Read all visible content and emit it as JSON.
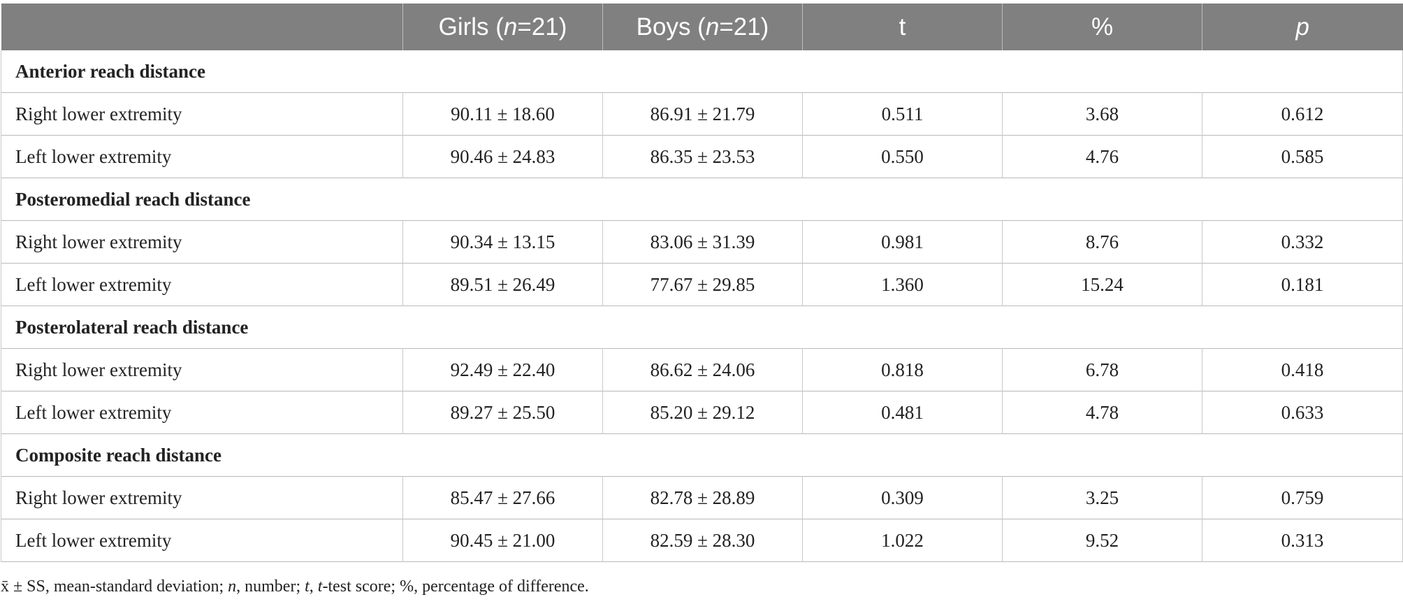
{
  "header": {
    "col0": "",
    "girls_prefix": "Girls (",
    "girls_n": "n",
    "girls_suffix": "=21)",
    "boys_prefix": "Boys (",
    "boys_n": "n",
    "boys_suffix": "=21)",
    "t": "t",
    "percent": "%",
    "p": "p"
  },
  "sections": [
    {
      "title": "Anterior reach distance",
      "rows": [
        {
          "label": "Right lower extremity",
          "girls": "90.11 ± 18.60",
          "boys": "86.91 ± 21.79",
          "t": "0.511",
          "percent": "3.68",
          "p": "0.612"
        },
        {
          "label": "Left lower extremity",
          "girls": "90.46 ± 24.83",
          "boys": "86.35 ± 23.53",
          "t": "0.550",
          "percent": "4.76",
          "p": "0.585"
        }
      ]
    },
    {
      "title": "Posteromedial reach distance",
      "rows": [
        {
          "label": "Right lower extremity",
          "girls": "90.34 ± 13.15",
          "boys": "83.06 ± 31.39",
          "t": "0.981",
          "percent": "8.76",
          "p": "0.332"
        },
        {
          "label": "Left lower extremity",
          "girls": "89.51 ± 26.49",
          "boys": "77.67 ± 29.85",
          "t": "1.360",
          "percent": "15.24",
          "p": "0.181"
        }
      ]
    },
    {
      "title": "Posterolateral reach distance",
      "rows": [
        {
          "label": "Right lower extremity",
          "girls": "92.49 ± 22.40",
          "boys": "86.62 ± 24.06",
          "t": "0.818",
          "percent": "6.78",
          "p": "0.418"
        },
        {
          "label": "Left lower extremity",
          "girls": "89.27 ± 25.50",
          "boys": "85.20 ± 29.12",
          "t": "0.481",
          "percent": "4.78",
          "p": "0.633"
        }
      ]
    },
    {
      "title": "Composite reach distance",
      "rows": [
        {
          "label": "Right lower extremity",
          "girls": "85.47 ± 27.66",
          "boys": "82.78 ± 28.89",
          "t": "0.309",
          "percent": "3.25",
          "p": "0.759"
        },
        {
          "label": "Left lower extremity",
          "girls": "90.45 ± 21.00",
          "boys": "82.59 ± 28.30",
          "t": "1.022",
          "percent": "9.52",
          "p": "0.313"
        }
      ]
    }
  ],
  "footnote": {
    "part1": "x̄ ± SS, mean-standard deviation; ",
    "n": "n",
    "part2": ", number; ",
    "t1": "t",
    "part3": ", ",
    "t2": "t",
    "part4": "-test score; %, percentage of difference."
  }
}
